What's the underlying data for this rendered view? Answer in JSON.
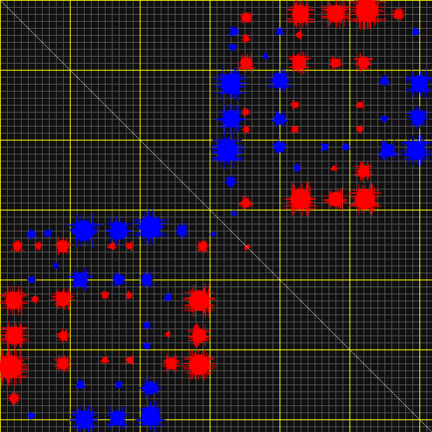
{
  "chart_data": {
    "type": "heatmap",
    "symmetric": true,
    "matrix_size": 618,
    "minor_grid_step": 10,
    "major_grid_step": 100,
    "grid": true,
    "colors": {
      "background": "#111111",
      "minor_grid": "#5a5a5a",
      "major_grid": "#ffff00",
      "diagonal": "#ffffff",
      "positive": "#ff0000",
      "negative": "#0000ff"
    },
    "clusters": [
      {
        "col": 120,
        "row": 330,
        "r": 14,
        "sign": "negative"
      },
      {
        "col": 170,
        "row": 330,
        "r": 12,
        "sign": "negative"
      },
      {
        "col": 215,
        "row": 325,
        "r": 15,
        "sign": "negative"
      },
      {
        "col": 260,
        "row": 330,
        "r": 6,
        "sign": "negative"
      },
      {
        "col": 45,
        "row": 335,
        "r": 5,
        "sign": "negative"
      },
      {
        "col": 68,
        "row": 333,
        "r": 4,
        "sign": "negative"
      },
      {
        "col": 115,
        "row": 400,
        "r": 10,
        "sign": "negative"
      },
      {
        "col": 170,
        "row": 400,
        "r": 7,
        "sign": "negative"
      },
      {
        "col": 210,
        "row": 400,
        "r": 7,
        "sign": "negative"
      },
      {
        "col": 45,
        "row": 400,
        "r": 4,
        "sign": "negative"
      },
      {
        "col": 115,
        "row": 550,
        "r": 5,
        "sign": "negative"
      },
      {
        "col": 170,
        "row": 550,
        "r": 4,
        "sign": "negative"
      },
      {
        "col": 215,
        "row": 555,
        "r": 9,
        "sign": "negative"
      },
      {
        "col": 120,
        "row": 600,
        "r": 12,
        "sign": "negative"
      },
      {
        "col": 168,
        "row": 598,
        "r": 10,
        "sign": "negative"
      },
      {
        "col": 215,
        "row": 595,
        "r": 13,
        "sign": "negative"
      },
      {
        "col": 45,
        "row": 595,
        "r": 4,
        "sign": "negative"
      },
      {
        "col": 210,
        "row": 465,
        "r": 4,
        "sign": "negative"
      },
      {
        "col": 210,
        "row": 495,
        "r": 4,
        "sign": "negative"
      },
      {
        "col": 240,
        "row": 425,
        "r": 4,
        "sign": "negative"
      },
      {
        "col": 305,
        "row": 335,
        "r": 3,
        "sign": "negative"
      },
      {
        "col": 80,
        "row": 380,
        "r": 3,
        "sign": "negative"
      },
      {
        "col": 25,
        "row": 352,
        "r": 6,
        "sign": "positive"
      },
      {
        "col": 55,
        "row": 352,
        "r": 4,
        "sign": "positive"
      },
      {
        "col": 90,
        "row": 352,
        "r": 8,
        "sign": "positive"
      },
      {
        "col": 160,
        "row": 352,
        "r": 4,
        "sign": "positive"
      },
      {
        "col": 185,
        "row": 352,
        "r": 4,
        "sign": "positive"
      },
      {
        "col": 290,
        "row": 352,
        "r": 6,
        "sign": "positive"
      },
      {
        "col": 20,
        "row": 430,
        "r": 12,
        "sign": "positive"
      },
      {
        "col": 50,
        "row": 428,
        "r": 4,
        "sign": "positive"
      },
      {
        "col": 90,
        "row": 428,
        "r": 10,
        "sign": "positive"
      },
      {
        "col": 150,
        "row": 422,
        "r": 4,
        "sign": "positive"
      },
      {
        "col": 185,
        "row": 422,
        "r": 4,
        "sign": "positive"
      },
      {
        "col": 285,
        "row": 430,
        "r": 14,
        "sign": "positive"
      },
      {
        "col": 20,
        "row": 480,
        "r": 12,
        "sign": "positive"
      },
      {
        "col": 90,
        "row": 480,
        "r": 6,
        "sign": "positive"
      },
      {
        "col": 285,
        "row": 480,
        "r": 10,
        "sign": "positive"
      },
      {
        "col": 15,
        "row": 525,
        "r": 16,
        "sign": "positive"
      },
      {
        "col": 90,
        "row": 520,
        "r": 8,
        "sign": "positive"
      },
      {
        "col": 150,
        "row": 515,
        "r": 4,
        "sign": "positive"
      },
      {
        "col": 185,
        "row": 515,
        "r": 4,
        "sign": "positive"
      },
      {
        "col": 245,
        "row": 520,
        "r": 8,
        "sign": "positive"
      },
      {
        "col": 285,
        "row": 522,
        "r": 14,
        "sign": "positive"
      },
      {
        "col": 20,
        "row": 570,
        "r": 6,
        "sign": "positive"
      },
      {
        "col": 240,
        "row": 478,
        "r": 3,
        "sign": "positive"
      },
      {
        "col": 355,
        "row": 352,
        "r": 2,
        "sign": "positive"
      }
    ]
  }
}
